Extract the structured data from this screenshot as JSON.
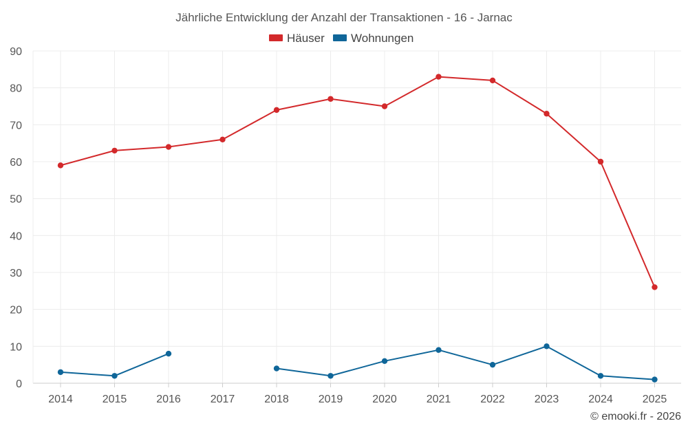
{
  "chart_data": {
    "type": "line",
    "title": "Jährliche Entwicklung der Anzahl der Transaktionen - 16 - Jarnac",
    "categories": [
      "2014",
      "2015",
      "2016",
      "2017",
      "2018",
      "2019",
      "2020",
      "2021",
      "2022",
      "2023",
      "2024",
      "2025"
    ],
    "series": [
      {
        "name": "Häuser",
        "color": "#d3292b",
        "values": [
          59,
          63,
          64,
          66,
          74,
          77,
          75,
          83,
          82,
          73,
          60,
          26
        ]
      },
      {
        "name": "Wohnungen",
        "color": "#0f6699",
        "values": [
          3,
          2,
          8,
          null,
          4,
          2,
          6,
          9,
          5,
          10,
          2,
          1
        ]
      }
    ],
    "ylim": [
      0,
      90
    ],
    "yticks": [
      "0",
      "10",
      "20",
      "30",
      "40",
      "50",
      "60",
      "70",
      "80",
      "90"
    ],
    "xlabel": "",
    "ylabel": "",
    "grid": true,
    "legend_position": "top-center"
  },
  "credit": "© emooki.fr - 2026"
}
